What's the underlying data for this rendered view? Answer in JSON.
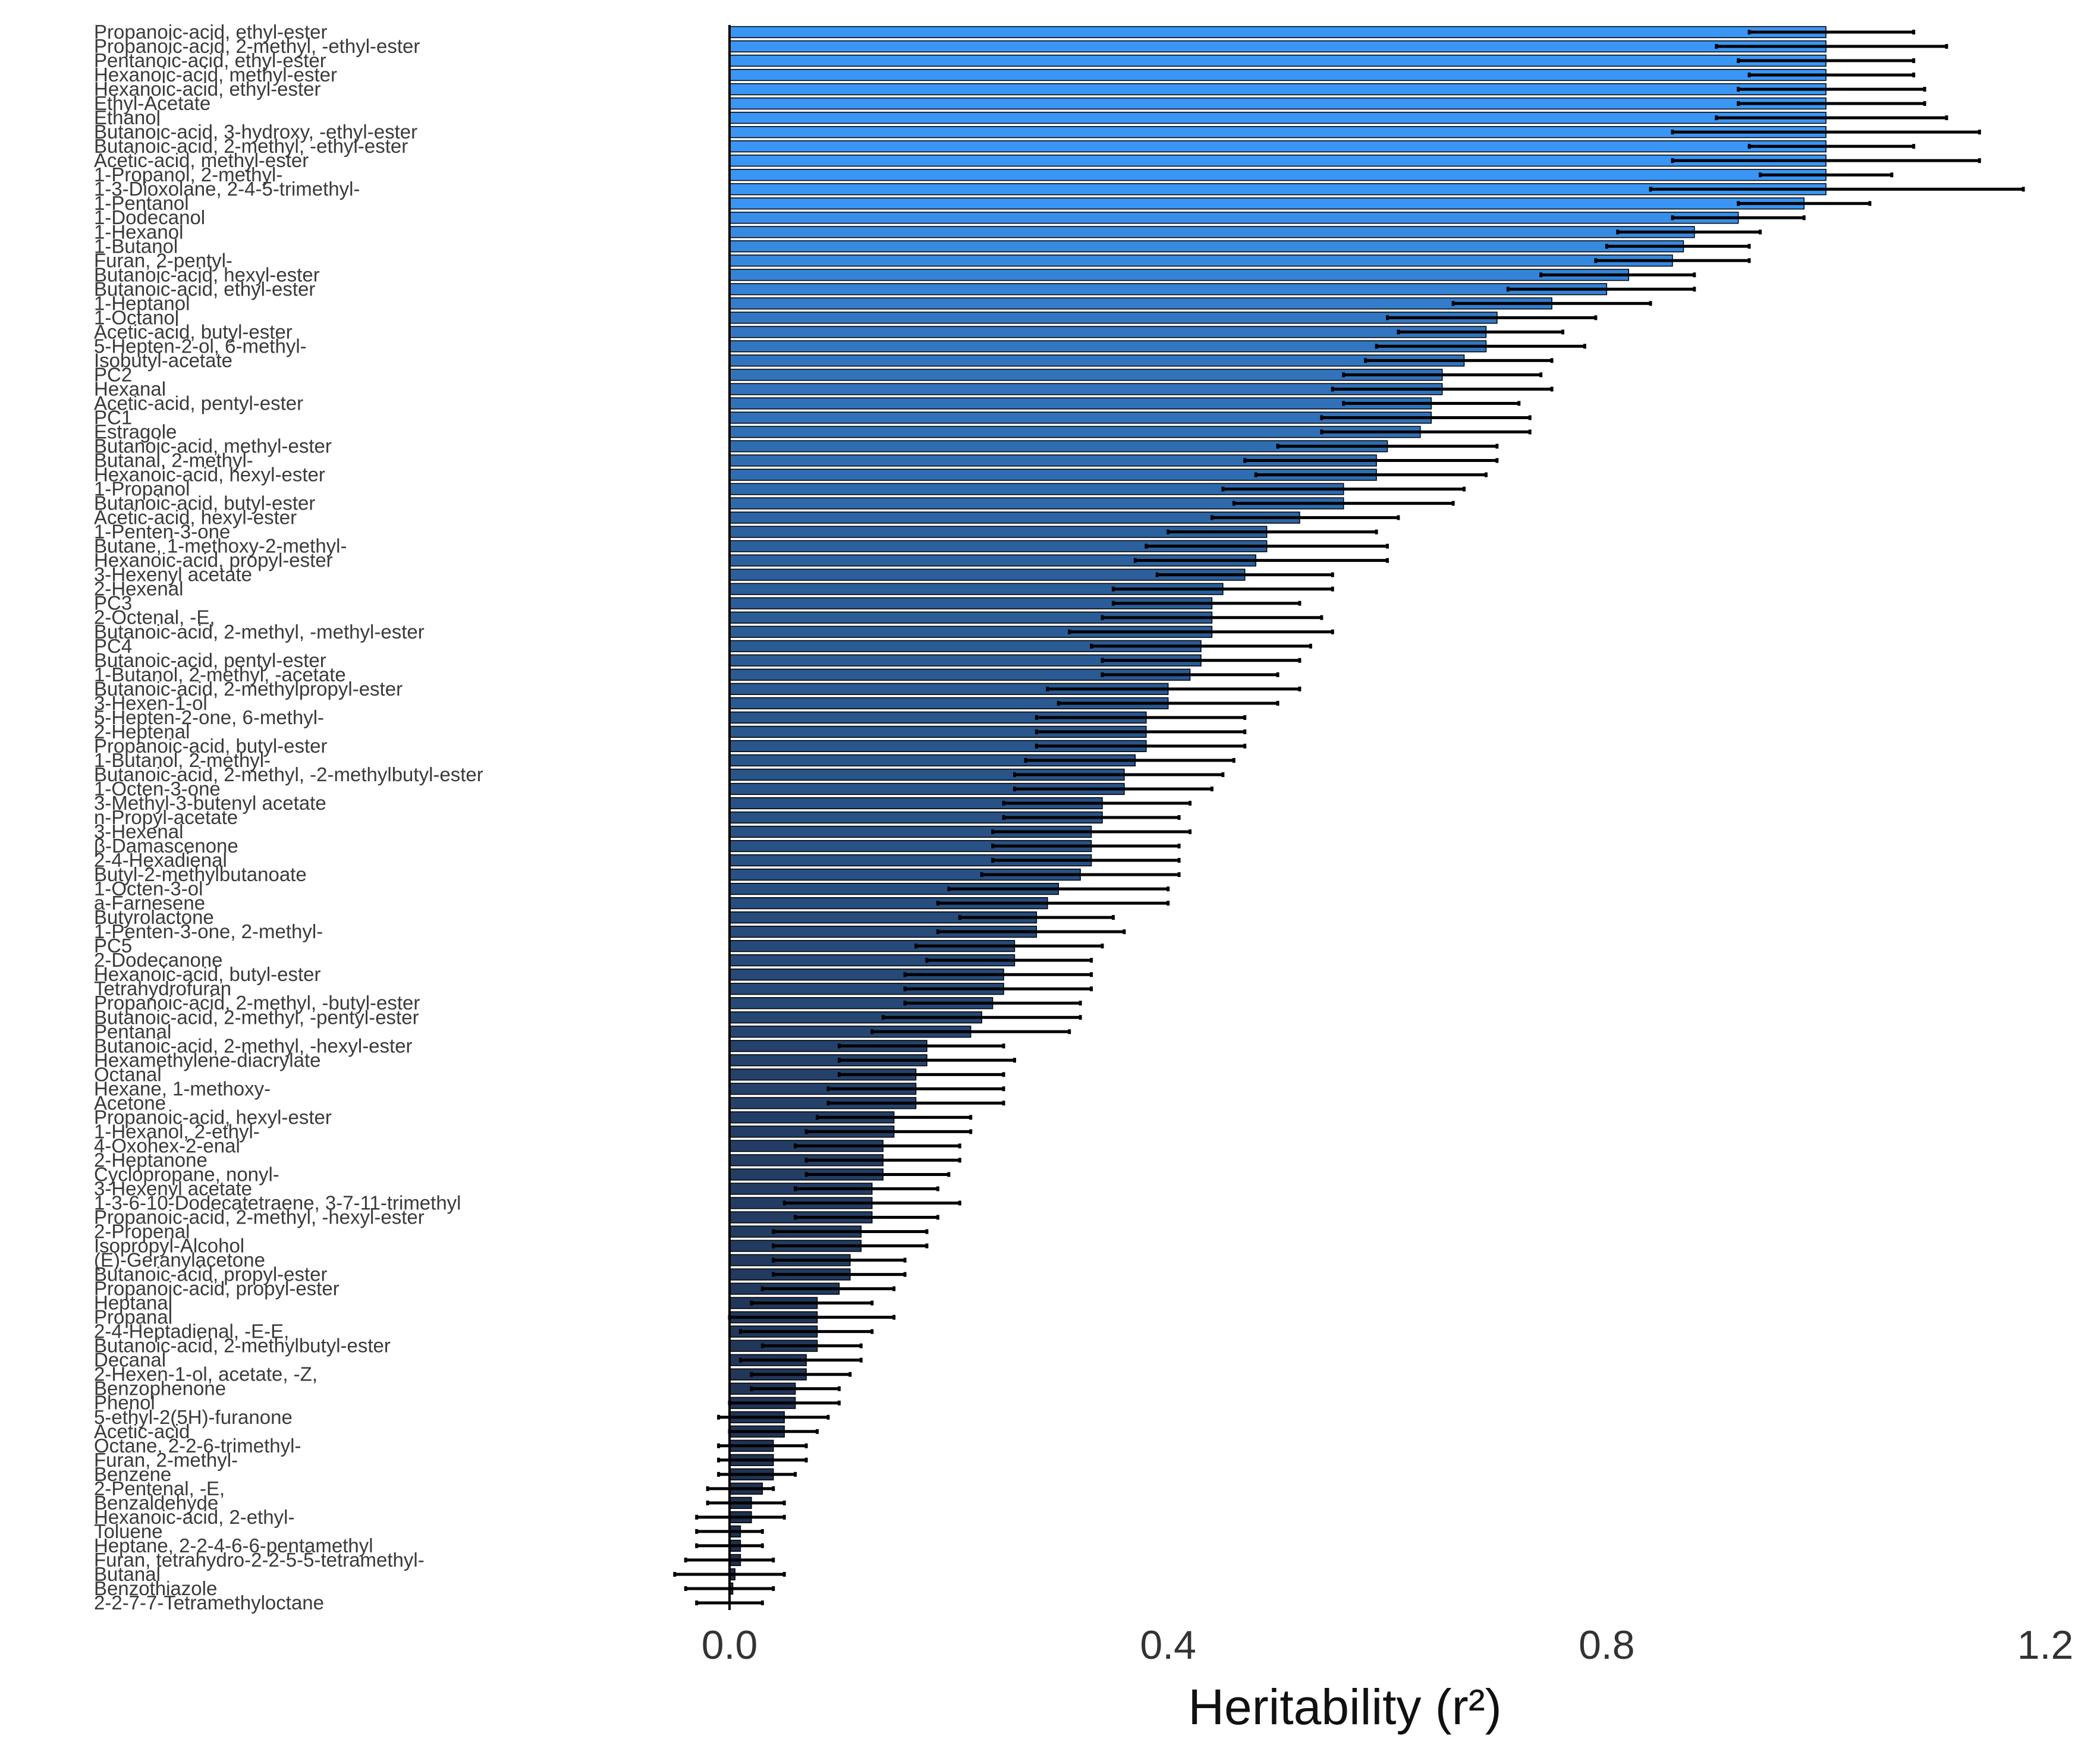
{
  "chart_data": {
    "type": "bar",
    "orientation": "horizontal",
    "xlabel": "Heritability (r²)",
    "xlim": [
      0,
      1.2
    ],
    "xticks": [
      0,
      0.4,
      0.8,
      1.2
    ],
    "xtick_labels": [
      "0.0",
      "0.4",
      "0.8",
      "1.2"
    ],
    "grid": false,
    "colormap": {
      "low": "#1f2f4d",
      "high": "#3a96f5"
    },
    "categories": [
      "Propanoic-acid, ethyl-ester",
      "Propanoic-acid, 2-methyl, -ethyl-ester",
      "Pentanoic-acid, ethyl-ester",
      "Hexanoic-acid, methyl-ester",
      "Hexanoic-acid, ethyl-ester",
      "Ethyl-Acetate",
      "Ethanol",
      "Butanoic-acid, 3-hydroxy, -ethyl-ester",
      "Butanoic-acid, 2-methyl, -ethyl-ester",
      "Acetic-acid, methyl-ester",
      "1-Propanol, 2-methyl-",
      "1-3-Dioxolane, 2-4-5-trimethyl-",
      "1-Pentanol",
      "1-Dodecanol",
      "1-Hexanol",
      "1-Butanol",
      "Furan, 2-pentyl-",
      "Butanoic-acid, hexyl-ester",
      "Butanoic-acid, ethyl-ester",
      "1-Heptanol",
      "1-Octanol",
      "Acetic-acid, butyl-ester",
      "5-Hepten-2-ol, 6-methyl-",
      "Isobutyl-acetate",
      "PC2",
      "Hexanal",
      "Acetic-acid, pentyl-ester",
      "PC1",
      "Estragole",
      "Butanoic-acid, methyl-ester",
      "Butanal, 2-methyl-",
      "Hexanoic-acid, hexyl-ester",
      "1-Propanol",
      "Butanoic-acid, butyl-ester",
      "Acetic-acid, hexyl-ester",
      "1-Penten-3-one",
      "Butane, 1-methoxy-2-methyl-",
      "Hexanoic-acid, propyl-ester",
      "3-Hexenyl acetate",
      "2-Hexenal",
      "PC3",
      "2-Octenal, -E,",
      "Butanoic-acid, 2-methyl, -methyl-ester",
      "PC4",
      "Butanoic-acid, pentyl-ester",
      "1-Butanol, 2-methyl, -acetate",
      "Butanoic-acid, 2-methylpropyl-ester",
      "3-Hexen-1-ol",
      "5-Hepten-2-one, 6-methyl-",
      "2-Heptenal",
      "Propanoic-acid, butyl-ester",
      "1-Butanol, 2-methyl-",
      "Butanoic-acid, 2-methyl, -2-methylbutyl-ester",
      "1-Octen-3-one",
      "3-Methyl-3-butenyl acetate",
      "n-Propyl-acetate",
      "3-Hexenal",
      "β-Damascenone",
      "2-4-Hexadienal",
      "Butyl-2-methylbutanoate",
      "1-Octen-3-ol",
      "a-Farnesene",
      "Butyrolactone",
      "1-Penten-3-one, 2-methyl-",
      "PC5",
      "2-Dodecanone",
      "Hexanoic-acid, butyl-ester",
      "Tetrahydrofuran",
      "Propanoic-acid, 2-methyl, -butyl-ester",
      "Butanoic-acid, 2-methyl, -pentyl-ester",
      "Pentanal",
      "Butanoic-acid, 2-methyl, -hexyl-ester",
      "Hexamethylene-diacrylate",
      "Octanal",
      "Hexane, 1-methoxy-",
      "Acetone",
      "Propanoic-acid, hexyl-ester",
      "1-Hexanol, 2-ethyl-",
      "4-Oxohex-2-enal",
      "2-Heptanone",
      "Cyclopropane, nonyl-",
      "3-Hexenyl acetate",
      "1-3-6-10-Dodecatetraene, 3-7-11-trimethyl",
      "Propanoic-acid, 2-methyl, -hexyl-ester",
      "2-Propenal",
      "Isopropyl-Alcohol",
      "(E)-Geranylacetone",
      "Butanoic-acid, propyl-ester",
      "Propanoic-acid, propyl-ester",
      "Heptanal",
      "Propanal",
      "2-4-Heptadienal, -E-E,",
      "Butanoic-acid, 2-methylbutyl-ester",
      "Decanal",
      "2-Hexen-1-ol, acetate, -Z,",
      "Benzophenone",
      "Phenol",
      "5-ethyl-2(5H)-furanone",
      "Acetic-acid",
      "Octane, 2-2-6-trimethyl-",
      "Furan, 2-methyl-",
      "Benzene",
      "2-Pentenal, -E,",
      "Benzaldehyde",
      "Hexanoic-acid, 2-ethyl-",
      "Toluene",
      "Heptane, 2-2-4-6-6-pentamethyl",
      "Furan, tetrahydro-2-2-5-5-tetramethyl-",
      "Butanal",
      "Benzothiazole",
      "2-2-7-7-Tetramethyloctane"
    ],
    "values": [
      1.0,
      1.0,
      1.0,
      1.0,
      1.0,
      1.0,
      1.0,
      1.0,
      1.0,
      1.0,
      1.0,
      1.0,
      0.98,
      0.92,
      0.88,
      0.87,
      0.86,
      0.82,
      0.8,
      0.75,
      0.7,
      0.69,
      0.69,
      0.67,
      0.65,
      0.65,
      0.64,
      0.64,
      0.63,
      0.6,
      0.59,
      0.59,
      0.56,
      0.56,
      0.52,
      0.49,
      0.49,
      0.48,
      0.47,
      0.45,
      0.44,
      0.44,
      0.44,
      0.43,
      0.43,
      0.42,
      0.4,
      0.4,
      0.38,
      0.38,
      0.38,
      0.37,
      0.36,
      0.36,
      0.34,
      0.34,
      0.33,
      0.33,
      0.33,
      0.32,
      0.3,
      0.29,
      0.28,
      0.28,
      0.26,
      0.26,
      0.25,
      0.25,
      0.24,
      0.23,
      0.22,
      0.18,
      0.18,
      0.17,
      0.17,
      0.17,
      0.15,
      0.15,
      0.14,
      0.14,
      0.14,
      0.13,
      0.13,
      0.13,
      0.12,
      0.12,
      0.11,
      0.11,
      0.1,
      0.08,
      0.08,
      0.08,
      0.08,
      0.07,
      0.07,
      0.06,
      0.06,
      0.05,
      0.05,
      0.04,
      0.04,
      0.04,
      0.03,
      0.02,
      0.02,
      0.01,
      0.01,
      0.01,
      0.005,
      0.003,
      0.0
    ],
    "error_low": [
      0.93,
      0.9,
      0.92,
      0.93,
      0.92,
      0.92,
      0.9,
      0.86,
      0.93,
      0.86,
      0.94,
      0.84,
      0.92,
      0.86,
      0.81,
      0.8,
      0.79,
      0.74,
      0.71,
      0.66,
      0.6,
      0.61,
      0.59,
      0.58,
      0.56,
      0.55,
      0.56,
      0.54,
      0.54,
      0.5,
      0.47,
      0.48,
      0.45,
      0.46,
      0.44,
      0.4,
      0.38,
      0.37,
      0.39,
      0.35,
      0.35,
      0.34,
      0.31,
      0.33,
      0.34,
      0.34,
      0.29,
      0.3,
      0.28,
      0.28,
      0.28,
      0.27,
      0.26,
      0.26,
      0.25,
      0.25,
      0.24,
      0.24,
      0.24,
      0.23,
      0.2,
      0.19,
      0.21,
      0.19,
      0.17,
      0.18,
      0.16,
      0.16,
      0.16,
      0.14,
      0.13,
      0.1,
      0.1,
      0.1,
      0.09,
      0.09,
      0.08,
      0.07,
      0.06,
      0.07,
      0.07,
      0.06,
      0.05,
      0.06,
      0.04,
      0.04,
      0.04,
      0.04,
      0.03,
      0.02,
      0.0,
      0.01,
      0.03,
      0.01,
      0.02,
      0.02,
      0.0,
      -0.01,
      0.0,
      -0.01,
      -0.01,
      -0.01,
      -0.02,
      -0.02,
      -0.03,
      -0.03,
      -0.03,
      -0.04,
      -0.05,
      -0.04,
      -0.03
    ],
    "error_high": [
      1.08,
      1.11,
      1.08,
      1.08,
      1.09,
      1.09,
      1.11,
      1.14,
      1.08,
      1.14,
      1.06,
      1.18,
      1.04,
      0.98,
      0.94,
      0.93,
      0.93,
      0.88,
      0.88,
      0.84,
      0.79,
      0.76,
      0.78,
      0.75,
      0.74,
      0.75,
      0.72,
      0.73,
      0.73,
      0.7,
      0.7,
      0.69,
      0.67,
      0.66,
      0.61,
      0.59,
      0.6,
      0.6,
      0.55,
      0.55,
      0.52,
      0.54,
      0.55,
      0.53,
      0.52,
      0.5,
      0.52,
      0.5,
      0.47,
      0.47,
      0.47,
      0.46,
      0.45,
      0.44,
      0.42,
      0.41,
      0.42,
      0.41,
      0.41,
      0.41,
      0.4,
      0.4,
      0.35,
      0.36,
      0.34,
      0.33,
      0.33,
      0.33,
      0.32,
      0.32,
      0.31,
      0.25,
      0.26,
      0.25,
      0.25,
      0.25,
      0.22,
      0.22,
      0.21,
      0.21,
      0.2,
      0.19,
      0.21,
      0.19,
      0.18,
      0.18,
      0.16,
      0.16,
      0.15,
      0.13,
      0.15,
      0.13,
      0.12,
      0.12,
      0.11,
      0.1,
      0.1,
      0.09,
      0.08,
      0.07,
      0.07,
      0.06,
      0.04,
      0.05,
      0.05,
      0.03,
      0.03,
      0.04,
      0.05,
      0.04,
      0.03
    ]
  }
}
